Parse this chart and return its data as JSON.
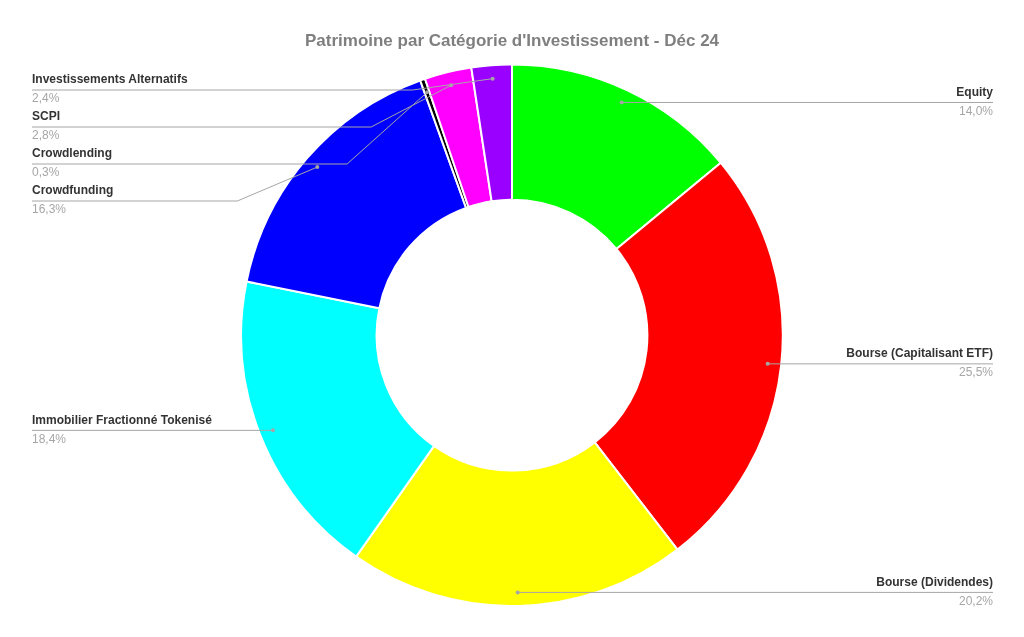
{
  "chart_data": {
    "type": "donut",
    "title": "Patrimoine par Catégorie d'Investissement - Déc 24",
    "categories": [
      "Equity",
      "Bourse (Capitalisant ETF)",
      "Bourse (Dividendes)",
      "Immobilier Fractionné Tokenisé",
      "Crowdfunding",
      "Crowdlending",
      "SCPI",
      "Investissements Alternatifs"
    ],
    "values": [
      14.0,
      25.5,
      20.2,
      18.4,
      16.3,
      0.3,
      2.8,
      2.4
    ],
    "colors": [
      "#00ff00",
      "#ff0000",
      "#ffff00",
      "#00ffff",
      "#0000ff",
      "#000000",
      "#ff00ff",
      "#9900ff"
    ],
    "value_labels": [
      "14,0%",
      "25,5%",
      "20,2%",
      "18,4%",
      "16,3%",
      "0,3%",
      "2,8%",
      "2,4%"
    ],
    "legend": false
  }
}
